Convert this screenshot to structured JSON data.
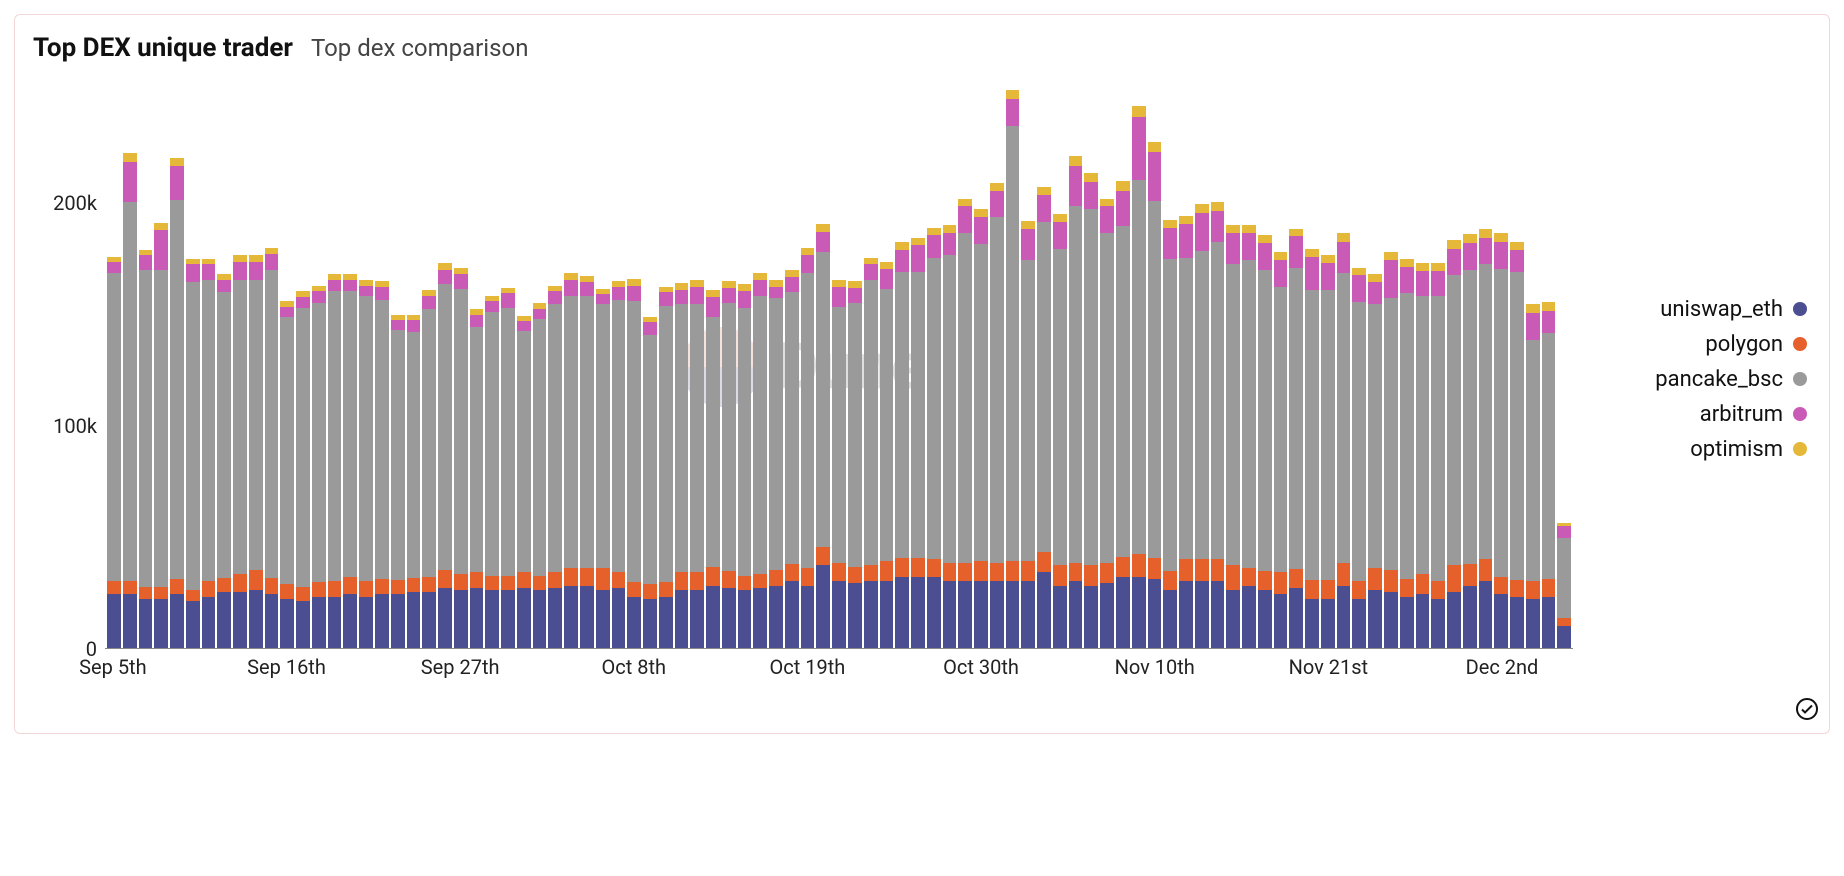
{
  "header": {
    "title": "Top DEX unique trader",
    "subtitle": "Top dex comparison"
  },
  "watermark": {
    "text": "Dune"
  },
  "status": {
    "icon": "check-circle"
  },
  "chart": {
    "type": "stacked-bar",
    "y": {
      "max": 260000,
      "ticks": [
        {
          "value": 0,
          "label": "0"
        },
        {
          "value": 100000,
          "label": "100k"
        },
        {
          "value": 200000,
          "label": "200k"
        }
      ]
    },
    "x": {
      "ticks": [
        {
          "index": 0,
          "label": "Sep 5th"
        },
        {
          "index": 11,
          "label": "Sep 16th"
        },
        {
          "index": 22,
          "label": "Sep 27th"
        },
        {
          "index": 33,
          "label": "Oct 8th"
        },
        {
          "index": 44,
          "label": "Oct 19th"
        },
        {
          "index": 55,
          "label": "Oct 30th"
        },
        {
          "index": 66,
          "label": "Nov 10th"
        },
        {
          "index": 77,
          "label": "Nov 21st"
        },
        {
          "index": 88,
          "label": "Dec 2nd"
        }
      ]
    },
    "series": [
      {
        "key": "uniswap_eth",
        "label": "uniswap_eth",
        "color": "#4b4e91"
      },
      {
        "key": "polygon",
        "label": "polygon",
        "color": "#e6602b"
      },
      {
        "key": "pancake_bsc",
        "label": "pancake_bsc",
        "color": "#9a9a9a"
      },
      {
        "key": "arbitrum",
        "label": "arbitrum",
        "color": "#c95bb6"
      },
      {
        "key": "optimism",
        "label": "optimism",
        "color": "#e6b83a"
      }
    ],
    "data": [
      [
        24000,
        6000,
        138000,
        5000,
        2500
      ],
      [
        24000,
        6000,
        170000,
        18000,
        4000
      ],
      [
        22000,
        5500,
        142000,
        6500,
        2500
      ],
      [
        22000,
        5500,
        142000,
        18000,
        3000
      ],
      [
        24000,
        7000,
        170000,
        15000,
        3500
      ],
      [
        21000,
        5000,
        138000,
        8000,
        2500
      ],
      [
        23000,
        7000,
        135000,
        7000,
        2500
      ],
      [
        25000,
        6500,
        128000,
        5500,
        2500
      ],
      [
        25000,
        8000,
        132000,
        8000,
        3000
      ],
      [
        26000,
        9000,
        130000,
        8000,
        3000
      ],
      [
        24000,
        7500,
        138000,
        7000,
        3000
      ],
      [
        22000,
        6500,
        120000,
        4500,
        2500
      ],
      [
        21000,
        6500,
        125000,
        5000,
        2500
      ],
      [
        23000,
        6500,
        125000,
        5500,
        2500
      ],
      [
        23000,
        7000,
        130000,
        5000,
        2500
      ],
      [
        24000,
        8000,
        128000,
        5000,
        2500
      ],
      [
        23000,
        7000,
        128000,
        4500,
        2500
      ],
      [
        24000,
        7000,
        125000,
        6000,
        2500
      ],
      [
        24000,
        6500,
        112000,
        4500,
        2500
      ],
      [
        25000,
        6500,
        110000,
        5500,
        2500
      ],
      [
        25000,
        7000,
        120000,
        6000,
        2500
      ],
      [
        27000,
        8000,
        128000,
        6500,
        3000
      ],
      [
        26000,
        7000,
        128000,
        6500,
        3000
      ],
      [
        27000,
        7000,
        110000,
        5500,
        2500
      ],
      [
        26000,
        6500,
        118000,
        5000,
        2500
      ],
      [
        26000,
        6500,
        120000,
        6500,
        2500
      ],
      [
        27000,
        7000,
        108000,
        4500,
        2500
      ],
      [
        26000,
        6500,
        115000,
        4500,
        2500
      ],
      [
        27000,
        7000,
        120000,
        6000,
        2500
      ],
      [
        28000,
        8000,
        122000,
        7000,
        3000
      ],
      [
        28000,
        8000,
        122000,
        6000,
        3000
      ],
      [
        26000,
        10000,
        118000,
        4500,
        2500
      ],
      [
        27000,
        7000,
        122000,
        6000,
        2500
      ],
      [
        23000,
        6500,
        126000,
        7000,
        3000
      ],
      [
        22000,
        6500,
        112000,
        5500,
        2500
      ],
      [
        23000,
        6500,
        124000,
        6000,
        2500
      ],
      [
        26000,
        8000,
        120000,
        6500,
        3000
      ],
      [
        26000,
        8000,
        120000,
        8000,
        3000
      ],
      [
        28000,
        8500,
        112000,
        9000,
        3000
      ],
      [
        27000,
        7500,
        120000,
        7000,
        3000
      ],
      [
        26000,
        6500,
        120000,
        7500,
        3000
      ],
      [
        27000,
        6000,
        125000,
        7000,
        3000
      ],
      [
        28000,
        7000,
        122000,
        5000,
        3000
      ],
      [
        30000,
        7500,
        122000,
        7000,
        3000
      ],
      [
        28000,
        8000,
        132000,
        8000,
        3500
      ],
      [
        37000,
        8500,
        132000,
        9000,
        3500
      ],
      [
        30000,
        8000,
        115000,
        9000,
        3000
      ],
      [
        29000,
        7500,
        118000,
        7000,
        3000
      ],
      [
        30000,
        7000,
        128000,
        7000,
        3000
      ],
      [
        30000,
        9000,
        122000,
        9000,
        3000
      ],
      [
        32000,
        8500,
        128000,
        10000,
        3500
      ],
      [
        32000,
        8500,
        128000,
        12000,
        3500
      ],
      [
        32000,
        8000,
        135000,
        10000,
        3500
      ],
      [
        30000,
        8000,
        138000,
        10000,
        3500
      ],
      [
        30000,
        8000,
        148000,
        12000,
        3500
      ],
      [
        30000,
        9000,
        142000,
        12000,
        4000
      ],
      [
        30000,
        8000,
        155000,
        12000,
        3500
      ],
      [
        30000,
        9000,
        195000,
        12000,
        4000
      ],
      [
        30000,
        9000,
        135000,
        14000,
        3500
      ],
      [
        34000,
        9000,
        148000,
        12000,
        3500
      ],
      [
        28000,
        9000,
        142000,
        12000,
        3500
      ],
      [
        30000,
        8000,
        160000,
        18000,
        4500
      ],
      [
        28000,
        9000,
        160000,
        12000,
        4000
      ],
      [
        29000,
        9000,
        148000,
        12000,
        3500
      ],
      [
        32000,
        9000,
        148000,
        16000,
        4500
      ],
      [
        32000,
        10000,
        168000,
        28000,
        5000
      ],
      [
        31000,
        9500,
        160000,
        22000,
        4500
      ],
      [
        26000,
        8500,
        140000,
        14000,
        3500
      ],
      [
        30000,
        10000,
        135000,
        15000,
        3500
      ],
      [
        30000,
        10000,
        138000,
        17000,
        4000
      ],
      [
        30000,
        10000,
        142000,
        14000,
        4000
      ],
      [
        26000,
        11000,
        135000,
        14000,
        3500
      ],
      [
        28000,
        8000,
        138000,
        12000,
        3500
      ],
      [
        26000,
        8500,
        135000,
        12000,
        3500
      ],
      [
        24000,
        10000,
        128000,
        12000,
        3500
      ],
      [
        27000,
        8500,
        135000,
        14000,
        3500
      ],
      [
        22000,
        8500,
        130000,
        15000,
        3500
      ],
      [
        22000,
        8500,
        130000,
        12000,
        3500
      ],
      [
        28000,
        10000,
        130000,
        14000,
        4000
      ],
      [
        22000,
        8000,
        125000,
        12000,
        3500
      ],
      [
        26000,
        10000,
        118000,
        10000,
        3500
      ],
      [
        25000,
        10000,
        122000,
        17000,
        3500
      ],
      [
        23000,
        8000,
        128000,
        12000,
        3500
      ],
      [
        24000,
        9000,
        125000,
        11000,
        3500
      ],
      [
        22000,
        8000,
        128000,
        11000,
        3500
      ],
      [
        25000,
        12000,
        130000,
        12000,
        4000
      ],
      [
        28000,
        9500,
        132000,
        12000,
        4000
      ],
      [
        30000,
        10000,
        132000,
        12000,
        4000
      ],
      [
        24000,
        8000,
        138000,
        12000,
        4000
      ],
      [
        23000,
        7500,
        138000,
        10000,
        3500
      ],
      [
        22000,
        8000,
        108000,
        12000,
        4000
      ],
      [
        23000,
        8000,
        110000,
        10000,
        4000
      ],
      [
        10000,
        3500,
        36000,
        5000,
        1500
      ]
    ]
  }
}
